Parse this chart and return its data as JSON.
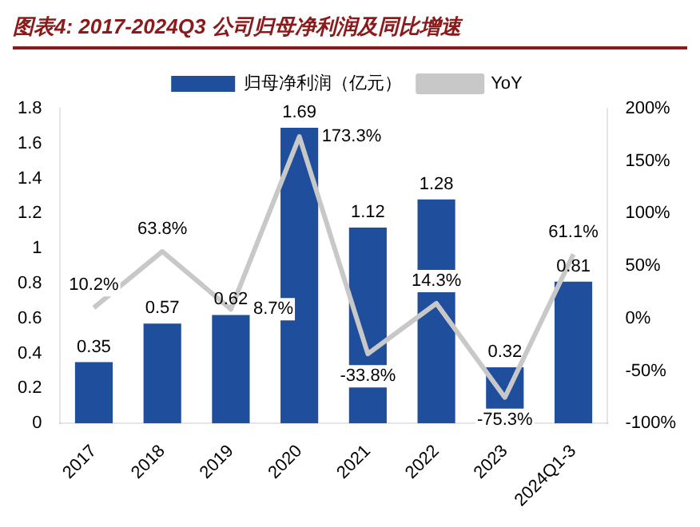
{
  "chart_data": {
    "type": "bar",
    "title": "图表4: 2017-2024Q3 公司归母净利润及同比增速",
    "categories": [
      "2017",
      "2018",
      "2019",
      "2020",
      "2021",
      "2022",
      "2023",
      "2024Q1-3"
    ],
    "series": [
      {
        "name": "归母净利润（亿元）",
        "color": "#1f4e9c",
        "values": [
          0.35,
          0.57,
          0.62,
          1.69,
          1.12,
          1.28,
          0.32,
          0.81
        ],
        "value_labels": [
          "0.35",
          "0.57",
          "0.62",
          "1.69",
          "1.12",
          "1.28",
          "0.32",
          "0.81"
        ]
      },
      {
        "name": "YoY",
        "type": "line",
        "axis": "y2",
        "color": "#c8c8c8",
        "values": [
          10.2,
          63.8,
          8.7,
          173.3,
          -33.8,
          14.3,
          -75.3,
          61.1
        ],
        "value_labels": [
          "10.2%",
          "63.8%",
          "8.7%",
          "173.3%",
          "-33.8%",
          "14.3%",
          "-75.3%",
          "61.1%"
        ]
      }
    ],
    "ylim": [
      0,
      1.8
    ],
    "yticks": [
      0,
      0.2,
      0.4,
      0.6,
      0.8,
      1,
      1.2,
      1.4,
      1.6,
      1.8
    ],
    "y2lim": [
      -100,
      200
    ],
    "y2ticks": [
      {
        "value": -100,
        "label": "-100%"
      },
      {
        "value": -50,
        "label": "-50%"
      },
      {
        "value": 0,
        "label": "0%"
      },
      {
        "value": 50,
        "label": "50%"
      },
      {
        "value": 100,
        "label": "100%"
      },
      {
        "value": 150,
        "label": "150%"
      },
      {
        "value": 200,
        "label": "200%"
      }
    ],
    "legend": "top",
    "grid": false,
    "marker": "none"
  }
}
